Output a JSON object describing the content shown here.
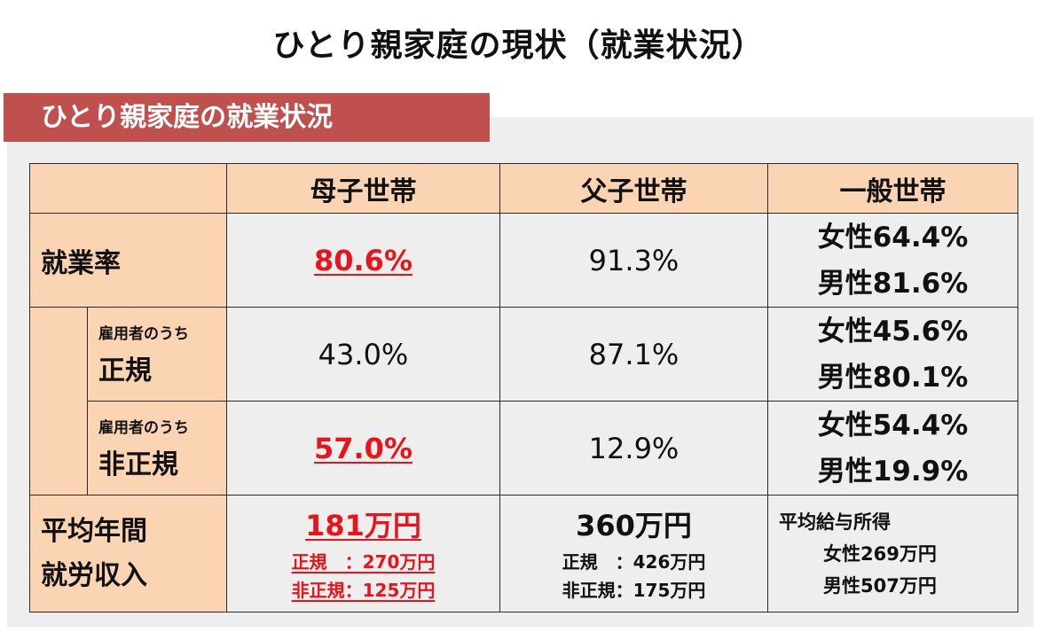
{
  "title": "ひとり親家庭の現状（就業状況）",
  "banner": "ひとり親家庭の就業状況",
  "table": {
    "headers": [
      "",
      "母子世帯",
      "父子世帯",
      "一般世帯"
    ],
    "employment_rate": {
      "label": "就業率",
      "mother": "80.6%",
      "father": "91.3%",
      "general": [
        "女性64.4%",
        "男性81.6%"
      ]
    },
    "regular": {
      "label_small": "雇用者のうち",
      "label": "正規",
      "mother": "43.0%",
      "father": "87.1%",
      "general": [
        "女性45.6%",
        "男性80.1%"
      ]
    },
    "nonregular": {
      "label_small": "雇用者のうち",
      "label": "非正規",
      "mother": "57.0%",
      "father": "12.9%",
      "general": [
        "女性54.4%",
        "男性19.9%"
      ]
    },
    "income": {
      "label_line1": "平均年間",
      "label_line2": "就労収入",
      "mother": {
        "total": "181万円",
        "regular": "正規　：270万円",
        "nonregular": "非正規：125万円"
      },
      "father": {
        "total": "360万円",
        "regular": "正規　：426万円",
        "nonregular": "非正規：175万円"
      },
      "general": {
        "heading": "平均給与所得",
        "female": "女性269万円",
        "male": "男性507万円"
      }
    }
  },
  "colors": {
    "banner": "#c0504d",
    "header_fill": "#fbd4b4",
    "panel": "#eeeeee",
    "highlight_red": "#e8141b"
  }
}
